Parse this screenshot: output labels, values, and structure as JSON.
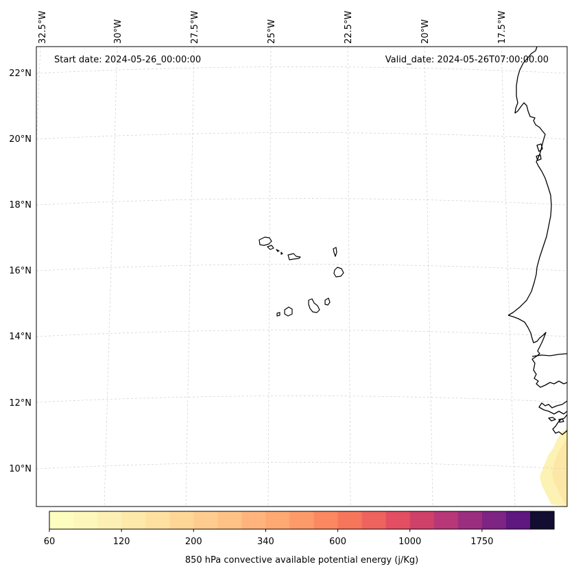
{
  "header": {
    "start_date": "Start date: 2024-05-26_00:00:00",
    "valid_date": "Valid_date: 2024-05-26T07:00:00.00"
  },
  "map": {
    "projection": "conic",
    "gridlines": true,
    "longitude_labels": [
      "32.5°W",
      "30°W",
      "27.5°W",
      "25°W",
      "22.5°W",
      "20°W",
      "17.5°W"
    ],
    "latitude_labels": [
      "22°N",
      "20°N",
      "18°N",
      "16°N",
      "14°N",
      "12°N",
      "10°N"
    ],
    "features": [
      "Cape Verde islands",
      "West African coastline"
    ]
  },
  "colorbar": {
    "label": "850 hPa convective available potential energy (j/Kg)",
    "tick_labels": [
      "60",
      "120",
      "200",
      "340",
      "600",
      "1000",
      "1750"
    ],
    "colors": [
      "#fcfdbf",
      "#fdf7bc",
      "#fdf0b5",
      "#fde9a9",
      "#fee0a0",
      "#fed797",
      "#fecc8f",
      "#fec287",
      "#feb47c",
      "#fea872",
      "#fd9a6a",
      "#fb8861",
      "#f6765c",
      "#ee635e",
      "#e34e62",
      "#cf4168",
      "#b73779",
      "#9c2e7f",
      "#7e2482",
      "#5f187f",
      "#120d31"
    ]
  },
  "field": {
    "name": "850 hPa CAPE",
    "shaded_region": "southeast corner",
    "colors": [
      "#fcf2b3",
      "#fde7a6",
      "#fbe6a8"
    ]
  }
}
